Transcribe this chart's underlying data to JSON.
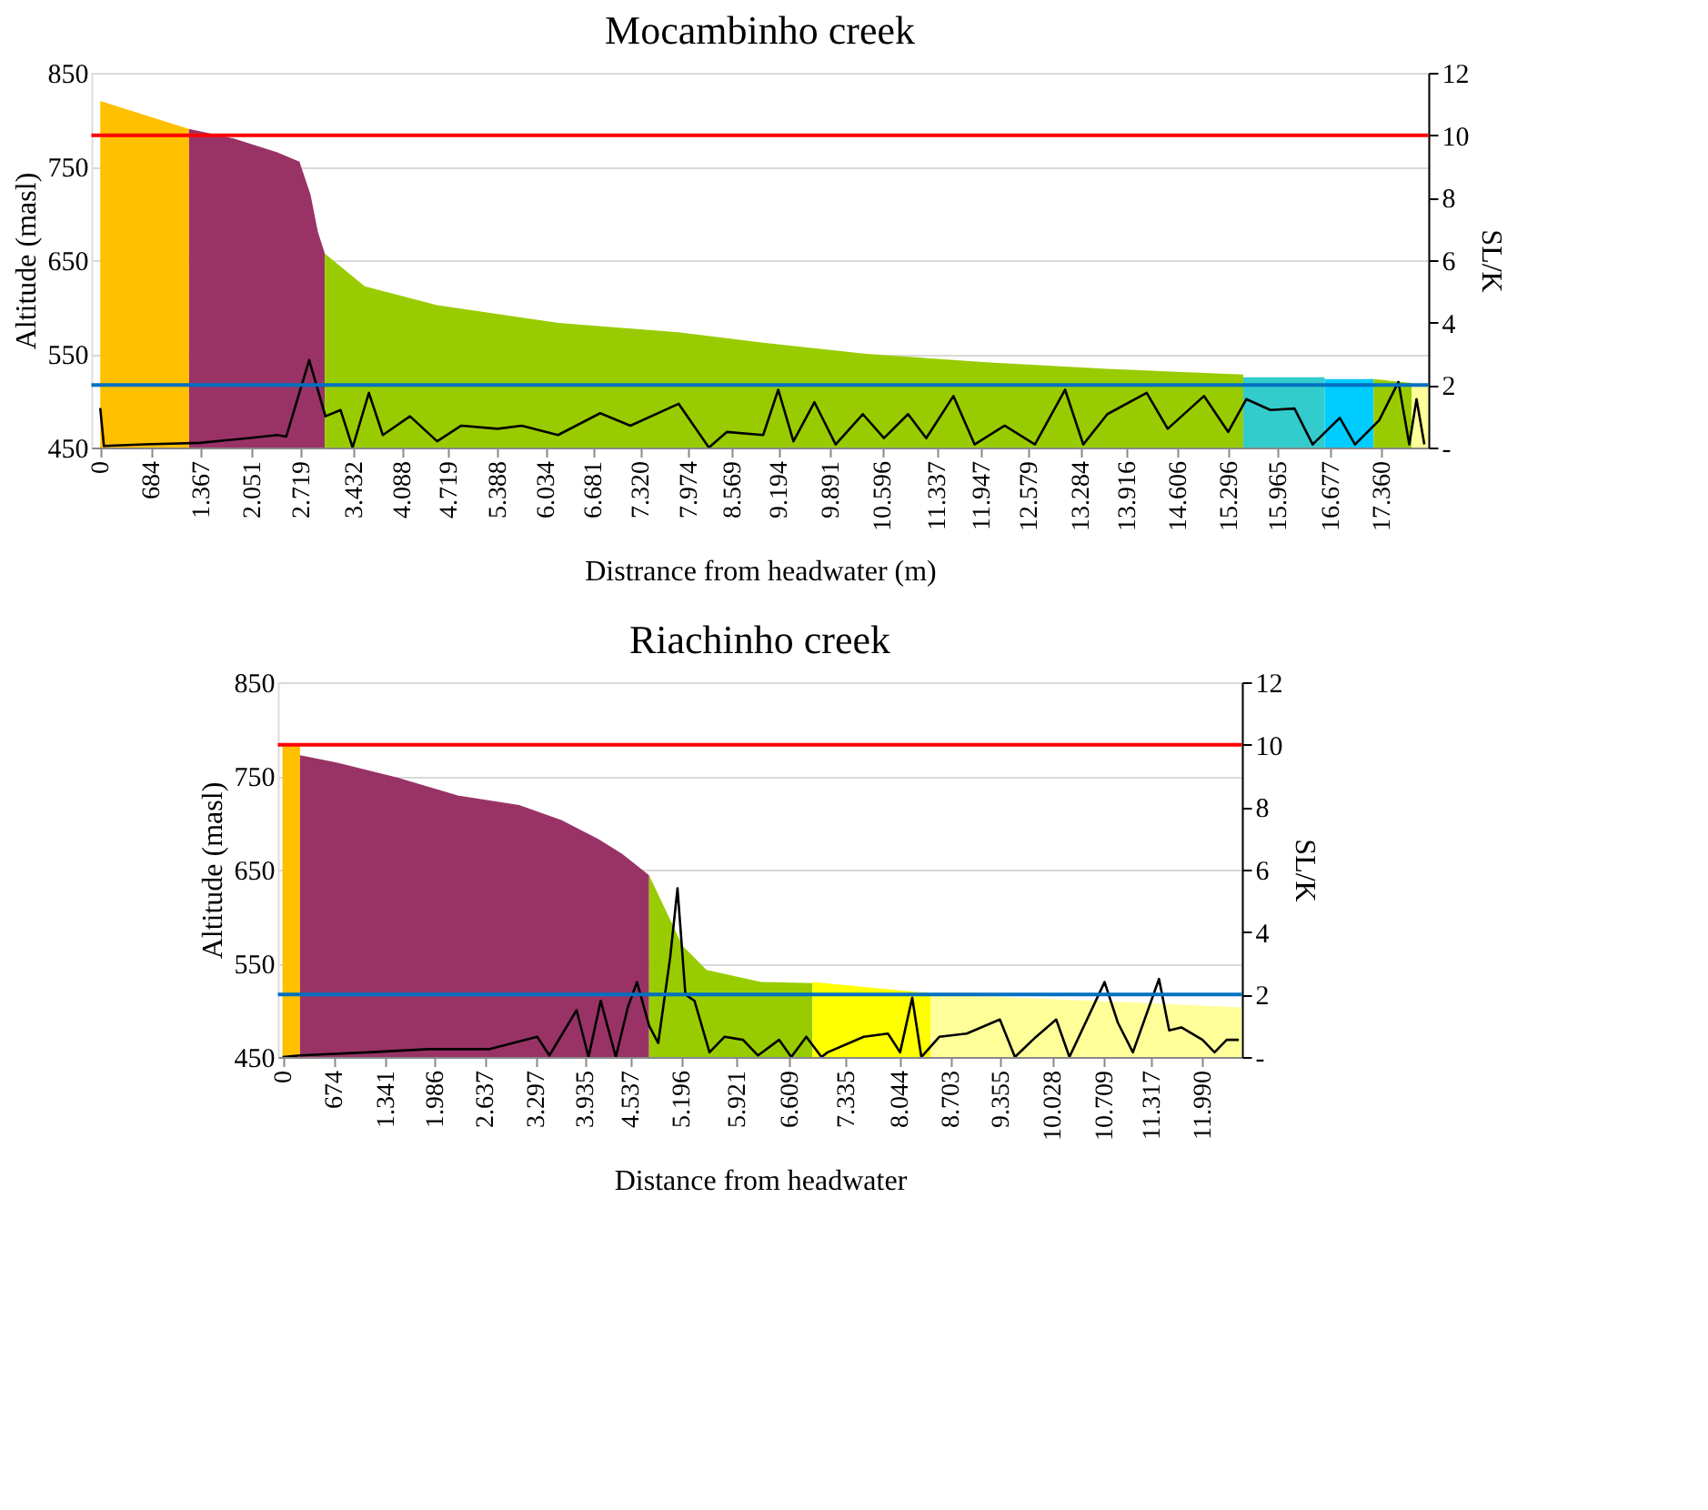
{
  "chart_data": [
    {
      "type": "area",
      "title": "Mocambinho creek",
      "xlabel": "Distrance  from headwater (m)",
      "ylabel": "Altitude  (masl)",
      "y2label": "SL/K",
      "grid": "y",
      "xlim": [
        -120,
        18000
      ],
      "xticks": [
        0,
        684,
        {
          "value": 1367,
          "label": "1.367"
        },
        {
          "value": 2051,
          "label": "2.051"
        },
        {
          "value": 2719,
          "label": "2.719"
        },
        {
          "value": 3432,
          "label": "3.432"
        },
        {
          "value": 4088,
          "label": "4.088"
        },
        {
          "value": 4719,
          "label": "4.719"
        },
        {
          "value": 5388,
          "label": "5.388"
        },
        {
          "value": 6034,
          "label": "6.034"
        },
        {
          "value": 6681,
          "label": "6.681"
        },
        {
          "value": 7320,
          "label": "7.320"
        },
        {
          "value": 7974,
          "label": "7.974"
        },
        {
          "value": 8569,
          "label": "8.569"
        },
        {
          "value": 9194,
          "label": "9.194"
        },
        {
          "value": 9891,
          "label": "9.891"
        },
        {
          "value": 10596,
          "label": "10.596"
        },
        {
          "value": 11337,
          "label": "11.337"
        },
        {
          "value": 11947,
          "label": "11.947"
        },
        {
          "value": 12579,
          "label": "12.579"
        },
        {
          "value": 13284,
          "label": "13.284"
        },
        {
          "value": 13916,
          "label": "13.916"
        },
        {
          "value": 14606,
          "label": "14.606"
        },
        {
          "value": 15296,
          "label": "15.296"
        },
        {
          "value": 15965,
          "label": "15.965"
        },
        {
          "value": 16677,
          "label": "16.677"
        },
        {
          "value": 17360,
          "label": "17.360"
        }
      ],
      "ylim": [
        450,
        850
      ],
      "yticks": [
        450,
        550,
        650,
        750,
        850
      ],
      "y2lim": [
        0,
        12
      ],
      "y2ticks": [
        {
          "value": 0,
          "label": "-"
        },
        2,
        4,
        6,
        8,
        10,
        12
      ],
      "series": [
        {
          "color": "#ffc000",
          "x": [
            0,
            400,
            800,
            1203
          ],
          "values": [
            820,
            810,
            800,
            790
          ]
        },
        {
          "color": "#993366",
          "x": [
            1203,
            1800,
            2400,
            2700,
            2850,
            2950,
            3044
          ],
          "values": [
            790,
            780,
            765,
            755,
            720,
            680,
            657
          ]
        },
        {
          "color": "#99cc00",
          "x": [
            3044,
            3584,
            4566,
            6211,
            7831,
            8985,
            10384,
            12005,
            13650,
            15491
          ],
          "values": [
            657,
            622,
            602,
            583,
            573,
            562,
            550,
            541,
            534,
            528
          ]
        },
        {
          "color": "#33cccc",
          "x": [
            15491,
            16596
          ],
          "values": [
            525,
            525
          ]
        },
        {
          "color": "#00ccff",
          "x": [
            16596,
            17259
          ],
          "values": [
            523,
            523
          ]
        },
        {
          "color": "#99cc00",
          "x": [
            17259,
            17774
          ],
          "values": [
            523,
            519
          ]
        },
        {
          "color": "#ffff99",
          "x": [
            17774,
            17995
          ],
          "values": [
            518,
            518
          ]
        },
        {
          "type": "line",
          "axis": "y2",
          "color": "#000000",
          "x": [
            0,
            50,
            600,
            1350,
            2000,
            2400,
            2521,
            2832,
            3052,
            3257,
            3420,
            3641,
            3830,
            4198,
            4566,
            4893,
            5384,
            5713,
            6204,
            6776,
            7185,
            7840,
            8249,
            8494,
            8985,
            9189,
            9395,
            9680,
            9967,
            10335,
            10622,
            10949,
            11195,
            11563,
            11850,
            12258,
            12668,
            13077,
            13323,
            13650,
            14183,
            14468,
            14959,
            15287,
            15533,
            15860,
            16186,
            16432,
            16800,
            17006,
            17333,
            17595,
            17742,
            17840,
            17946
          ],
          "values": [
            1.26,
            0.05,
            0.1,
            0.15,
            0.3,
            0.4,
            0.35,
            2.8,
            1.0,
            1.2,
            0,
            1.75,
            0.4,
            1.0,
            0.2,
            0.7,
            0.6,
            0.7,
            0.4,
            1.1,
            0.7,
            1.4,
            0,
            0.5,
            0.4,
            1.85,
            0.2,
            1.45,
            0.1,
            1.07,
            0.3,
            1.07,
            0.3,
            1.65,
            0.1,
            0.7,
            0.1,
            1.85,
            0.1,
            1.07,
            1.75,
            0.6,
            1.65,
            0.5,
            1.55,
            1.2,
            1.25,
            0.1,
            0.95,
            0.1,
            0.87,
            2.1,
            0.1,
            1.55,
            0.1
          ]
        }
      ],
      "ref_lines": [
        {
          "axis": "y2",
          "value": 10,
          "color": "#ff0000"
        },
        {
          "axis": "y2",
          "value": 2,
          "color": "#0070c0"
        }
      ]
    },
    {
      "type": "area",
      "title": "Riachinho creek",
      "xlabel": "Distance from headwater",
      "ylabel": "Altitude  (masl)",
      "y2label": "SL/K",
      "grid": "y",
      "xlim": [
        -60,
        12500
      ],
      "xticks": [
        0,
        674,
        {
          "value": 1341,
          "label": "1.341"
        },
        {
          "value": 1986,
          "label": "1.986"
        },
        {
          "value": 2637,
          "label": "2.637"
        },
        {
          "value": 3297,
          "label": "3.297"
        },
        {
          "value": 3935,
          "label": "3.935"
        },
        {
          "value": 4537,
          "label": "4.537"
        },
        {
          "value": 5196,
          "label": "5.196"
        },
        {
          "value": 5921,
          "label": "5.921"
        },
        {
          "value": 6609,
          "label": "6.609"
        },
        {
          "value": 7335,
          "label": "7.335"
        },
        {
          "value": 8044,
          "label": "8.044"
        },
        {
          "value": 8703,
          "label": "8.703"
        },
        {
          "value": 9355,
          "label": "9.355"
        },
        {
          "value": 10028,
          "label": "10.028"
        },
        {
          "value": 10709,
          "label": "10.709"
        },
        {
          "value": 11317,
          "label": "11.317"
        },
        {
          "value": 11990,
          "label": "11.990"
        }
      ],
      "ylim": [
        450,
        850
      ],
      "yticks": [
        450,
        550,
        650,
        750,
        850
      ],
      "y2lim": [
        0,
        12
      ],
      "y2ticks": [
        {
          "value": 0,
          "label": "-"
        },
        2,
        4,
        6,
        8,
        10,
        12
      ],
      "series": [
        {
          "color": "#ffc000",
          "x": [
            0,
            229
          ],
          "values": [
            783,
            783
          ]
        },
        {
          "color": "#993366",
          "x": [
            229,
            719,
            1506,
            2295,
            3083,
            3634,
            4107,
            4423,
            4777
          ],
          "values": [
            772,
            764,
            748,
            729,
            719,
            703,
            683,
            667,
            644
          ]
        },
        {
          "color": "#99cc00",
          "x": [
            4777,
            5210,
            5525,
            6234,
            6905
          ],
          "values": [
            644,
            569,
            543,
            530,
            529
          ]
        },
        {
          "color": "#ffff00",
          "x": [
            6905,
            8442
          ],
          "values": [
            530,
            518
          ]
        },
        {
          "color": "#ffff99",
          "x": [
            8442,
            10569,
            12498
          ],
          "values": [
            517,
            510,
            503
          ]
        },
        {
          "type": "line",
          "axis": "y2",
          "color": "#000000",
          "x": [
            0,
            229,
            1113,
            1900,
            2688,
            3319,
            3478,
            3832,
            3988,
            4146,
            4343,
            4501,
            4619,
            4777,
            4896,
            5052,
            5147,
            5250,
            5368,
            5564,
            5761,
            6000,
            6196,
            6470,
            6629,
            6825,
            7023,
            7102,
            7574,
            7889,
            8047,
            8205,
            8324,
            8560,
            8915,
            9347,
            9543,
            9820,
            10081,
            10253,
            10711,
            10884,
            11080,
            11420,
            11553,
            11711,
            11987,
            12144,
            12302,
            12460
          ],
          "values": [
            0,
            0.05,
            0.15,
            0.25,
            0.25,
            0.65,
            0.05,
            1.5,
            0,
            1.8,
            0,
            1.6,
            2.4,
            1.0,
            0.45,
            3.2,
            5.4,
            2.0,
            1.8,
            0.15,
            0.65,
            0.55,
            0.05,
            0.55,
            0,
            0.65,
            0,
            0.15,
            0.65,
            0.75,
            0.15,
            1.9,
            0,
            0.65,
            0.75,
            1.2,
            0,
            0.65,
            1.2,
            0,
            2.4,
            1.1,
            0.15,
            2.5,
            0.85,
            0.95,
            0.55,
            0.15,
            0.55,
            0.55
          ]
        }
      ],
      "ref_lines": [
        {
          "axis": "y2",
          "value": 10,
          "color": "#ff0000"
        },
        {
          "axis": "y2",
          "value": 2,
          "color": "#0070c0"
        }
      ]
    }
  ]
}
